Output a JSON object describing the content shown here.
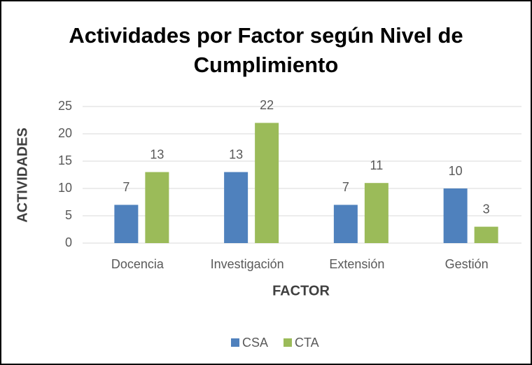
{
  "chart_data": {
    "type": "bar",
    "title": "Actividades por Factor según Nivel de Cumplimiento",
    "xlabel": "FACTOR",
    "ylabel": "ACTIVIDADES",
    "categories": [
      "Docencia",
      "Investigación",
      "Extensión",
      "Gestión"
    ],
    "series": [
      {
        "name": "CSA",
        "color": "#4f81bd",
        "values": [
          7,
          13,
          7,
          10
        ]
      },
      {
        "name": "CTA",
        "color": "#9bbb59",
        "values": [
          13,
          22,
          11,
          3
        ]
      }
    ],
    "ylim": [
      0,
      25
    ],
    "yticks": [
      0,
      5,
      10,
      15,
      20,
      25
    ],
    "grid": true,
    "legend": "bottom"
  }
}
